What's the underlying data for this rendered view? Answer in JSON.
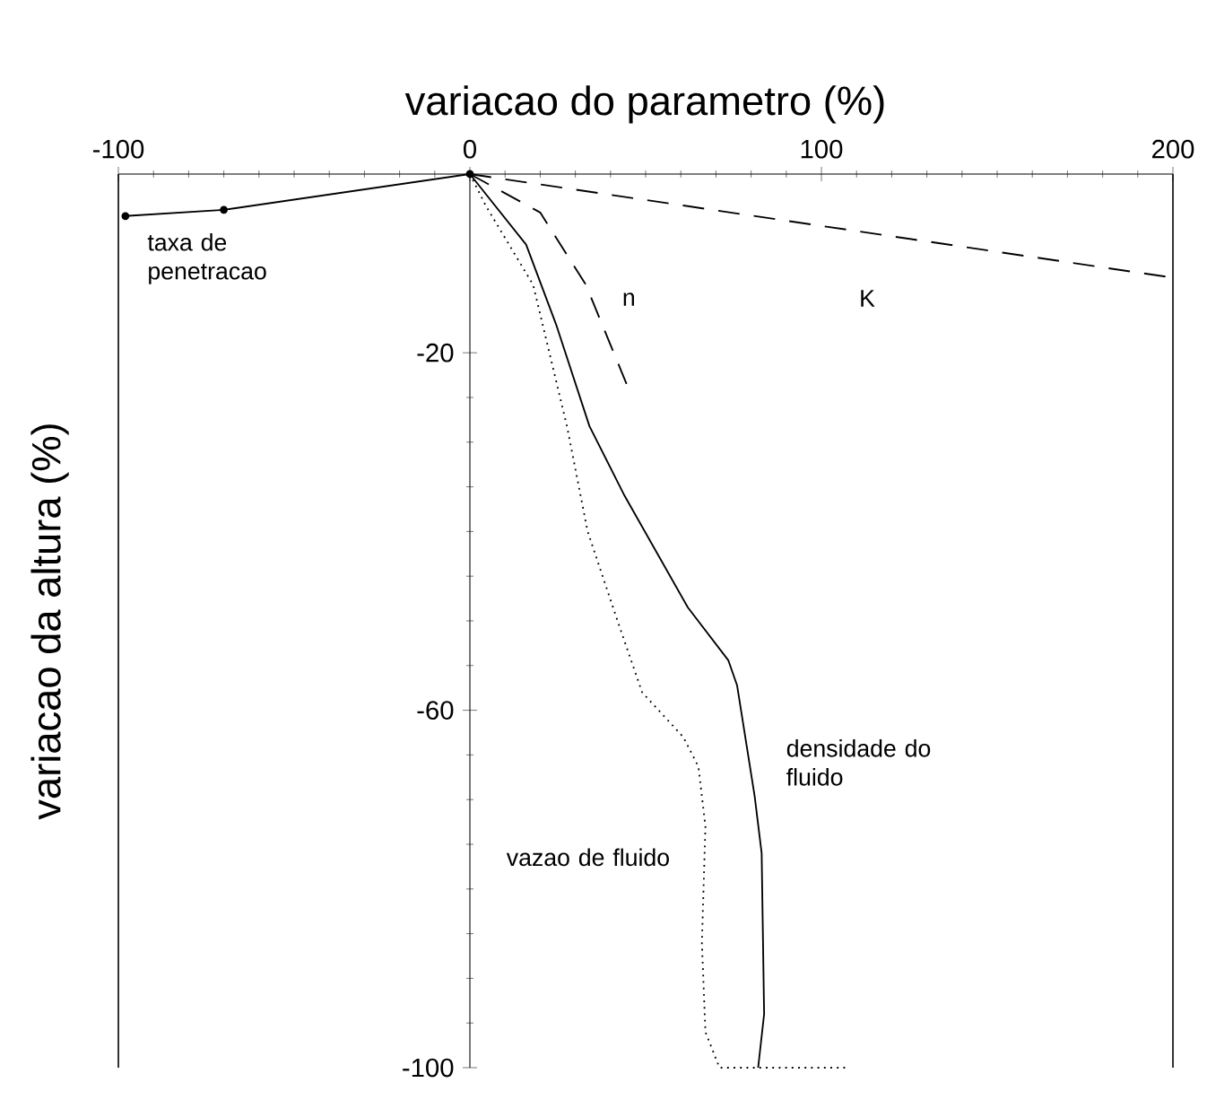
{
  "chart_data": {
    "type": "line",
    "xlabel": "variacao do parametro (%)",
    "ylabel": "variacao da altura (%)",
    "xlim": [
      -100,
      200
    ],
    "ylim": [
      -100,
      0
    ],
    "xticks": [
      -100,
      0,
      100,
      200
    ],
    "yticks": [
      -20,
      -60,
      -100
    ],
    "series": [
      {
        "name": "taxa de penetracao",
        "color": "#000000",
        "line_style": "solid",
        "marker": "circle",
        "x": [
          -98,
          -70,
          0
        ],
        "values": [
          -4.7,
          -4,
          0
        ]
      },
      {
        "name": "K",
        "color": "#000000",
        "line_style": "dashed",
        "marker": "none",
        "x": [
          0,
          200
        ],
        "values": [
          0,
          -11.6
        ]
      },
      {
        "name": "n",
        "color": "#000000",
        "line_style": "dashed",
        "marker": "none",
        "x": [
          0,
          20,
          33,
          45
        ],
        "values": [
          0,
          -4.3,
          -12.4,
          -23.9
        ]
      },
      {
        "name": "densidade do fluido",
        "color": "#000000",
        "line_style": "solid",
        "marker": "none",
        "x": [
          0,
          16,
          24.5,
          34,
          44,
          62,
          73.5,
          76,
          81,
          83,
          83.7,
          82
        ],
        "values": [
          0,
          -7.9,
          -16.8,
          -28.2,
          -36,
          -48.5,
          -54.4,
          -57.2,
          -69.6,
          -76,
          -94,
          -100
        ]
      },
      {
        "name": "vazao de fluido",
        "color": "#000000",
        "line_style": "dotted",
        "marker": "none",
        "x": [
          0,
          4.6,
          18,
          27.6,
          33.5,
          42,
          49,
          60.7,
          65,
          67,
          66,
          67,
          71,
          107
        ],
        "values": [
          0,
          -3.6,
          -12.4,
          -28.2,
          -40,
          -50,
          -58,
          -63,
          -66.3,
          -73,
          -86,
          -96,
          -100,
          -100
        ]
      }
    ]
  }
}
